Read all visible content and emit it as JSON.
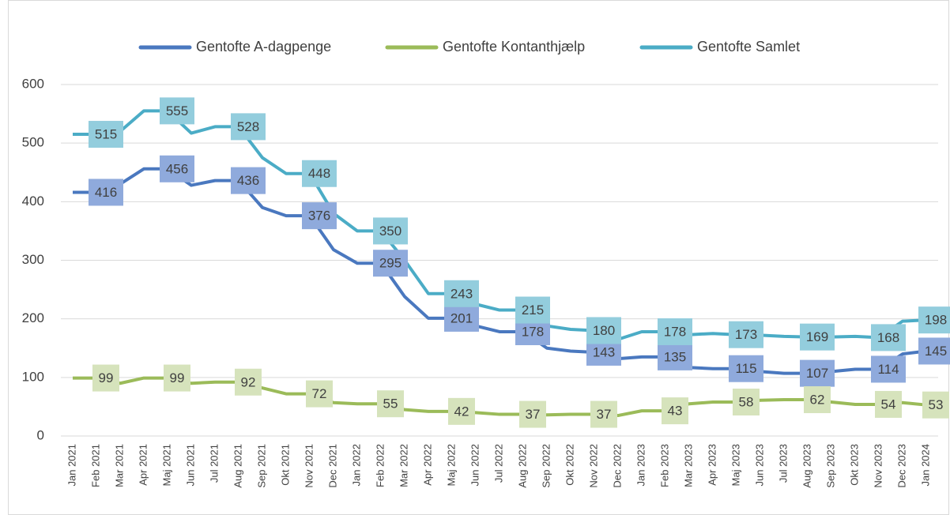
{
  "chart_data": {
    "type": "line",
    "categories": [
      "Jan 2021",
      "Feb 2021",
      "Mar 2021",
      "Apr 2021",
      "Maj 2021",
      "Jun 2021",
      "Jul 2021",
      "Aug 2021",
      "Sep 2021",
      "Okt 2021",
      "Nov 2021",
      "Dec 2021",
      "Jan 2022",
      "Feb 2022",
      "Mar 2022",
      "Apr 2022",
      "Maj 2022",
      "Jun 2022",
      "Jul 2022",
      "Aug 2022",
      "Sep 2022",
      "Okt 2022",
      "Nov 2022",
      "Dec 2022",
      "Jan 2023",
      "Feb 2023",
      "Mar 2023",
      "Apr 2023",
      "Maj 2023",
      "Jun 2023",
      "Jul 2023",
      "Aug 2023",
      "Sep 2023",
      "Okt 2023",
      "Nov 2023",
      "Dec 2023",
      "Jan 2024"
    ],
    "series": [
      {
        "name": "Gentofte A-dagpenge",
        "color": "#4a78bf",
        "label_color": "#8faadc",
        "values": [
          416,
          416,
          430,
          456,
          456,
          428,
          436,
          436,
          390,
          376,
          376,
          318,
          295,
          295,
          238,
          201,
          201,
          188,
          178,
          178,
          150,
          145,
          143,
          132,
          135,
          135,
          117,
          115,
          115,
          110,
          107,
          107,
          110,
          114,
          114,
          140,
          145
        ],
        "value_labels": [
          null,
          "416",
          null,
          null,
          "456",
          null,
          null,
          "436",
          null,
          null,
          "376",
          null,
          null,
          "295",
          null,
          null,
          "201",
          null,
          null,
          "178",
          null,
          null,
          "143",
          null,
          null,
          "135",
          null,
          null,
          "115",
          null,
          null,
          "107",
          null,
          null,
          "114",
          null,
          "145"
        ]
      },
      {
        "name": "Gentofte Kontanthjælp",
        "color": "#9bbb59",
        "label_color": "#d6e3bc",
        "values": [
          99,
          99,
          90,
          99,
          99,
          90,
          92,
          92,
          82,
          72,
          72,
          57,
          55,
          55,
          45,
          42,
          42,
          40,
          37,
          37,
          36,
          37,
          37,
          35,
          43,
          43,
          55,
          58,
          58,
          61,
          62,
          62,
          58,
          54,
          54,
          57,
          53
        ],
        "value_labels": [
          null,
          "99",
          null,
          null,
          "99",
          null,
          null,
          "92",
          null,
          null,
          "72",
          null,
          null,
          "55",
          null,
          null,
          "42",
          null,
          null,
          "37",
          null,
          null,
          "37",
          null,
          null,
          "43",
          null,
          null,
          "58",
          null,
          null,
          "62",
          null,
          null,
          "54",
          null,
          "53"
        ]
      },
      {
        "name": "Gentofte Samlet",
        "color": "#4bacc6",
        "label_color": "#93cddd",
        "values": [
          515,
          515,
          520,
          555,
          555,
          517,
          528,
          528,
          475,
          448,
          448,
          380,
          350,
          350,
          300,
          243,
          243,
          225,
          215,
          215,
          188,
          182,
          180,
          165,
          178,
          178,
          173,
          175,
          173,
          172,
          170,
          169,
          169,
          170,
          168,
          196,
          198
        ],
        "value_labels": [
          null,
          "515",
          null,
          null,
          "555",
          null,
          null,
          "528",
          null,
          null,
          "448",
          null,
          null,
          "350",
          null,
          null,
          "243",
          null,
          null,
          "215",
          null,
          null,
          "180",
          null,
          null,
          "178",
          null,
          null,
          "173",
          null,
          null,
          "169",
          null,
          null,
          "168",
          null,
          "198"
        ]
      }
    ],
    "ylim": [
      0,
      600
    ],
    "yticks": [
      0,
      100,
      200,
      300,
      400,
      500,
      600
    ],
    "grid": true,
    "legend": "top"
  }
}
